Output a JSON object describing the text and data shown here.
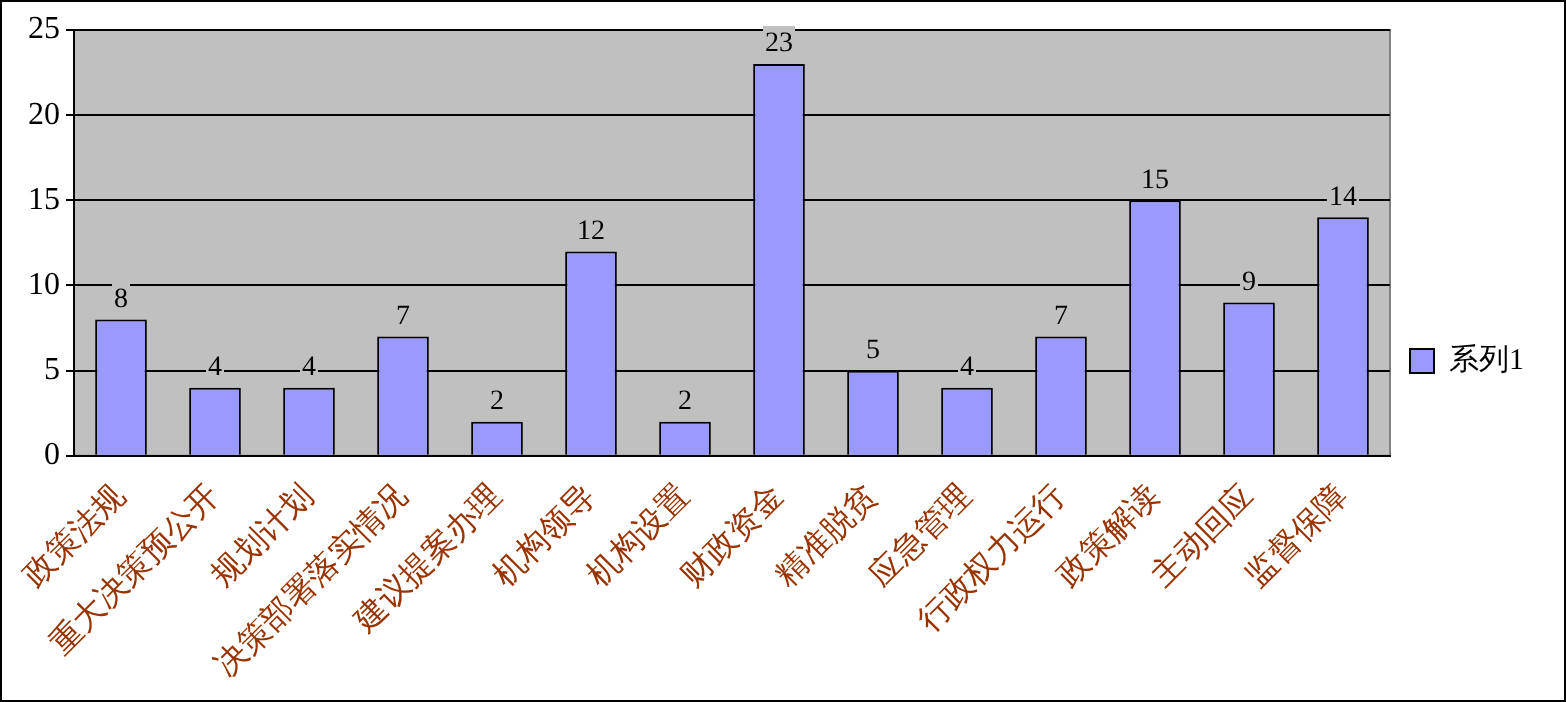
{
  "chart_data": {
    "type": "bar",
    "categories": [
      "政策法规",
      "重大决策预公开",
      "规划计划",
      "决策部署落实情况",
      "建议提案办理",
      "机构领导",
      "机构设置",
      "财政资金",
      "精准脱贫",
      "应急管理",
      "行政权力运行",
      "政策解读",
      "主动回应",
      "监督保障"
    ],
    "series": [
      {
        "name": "系列1",
        "color": "#9999ff",
        "values": [
          8,
          4,
          4,
          7,
          2,
          12,
          2,
          23,
          5,
          4,
          7,
          15,
          9,
          14
        ]
      }
    ],
    "ylim": [
      0,
      25
    ],
    "yticks": [
      0,
      5,
      10,
      15,
      20,
      25
    ],
    "grid": "y",
    "legend": "right",
    "data_labels": true
  }
}
